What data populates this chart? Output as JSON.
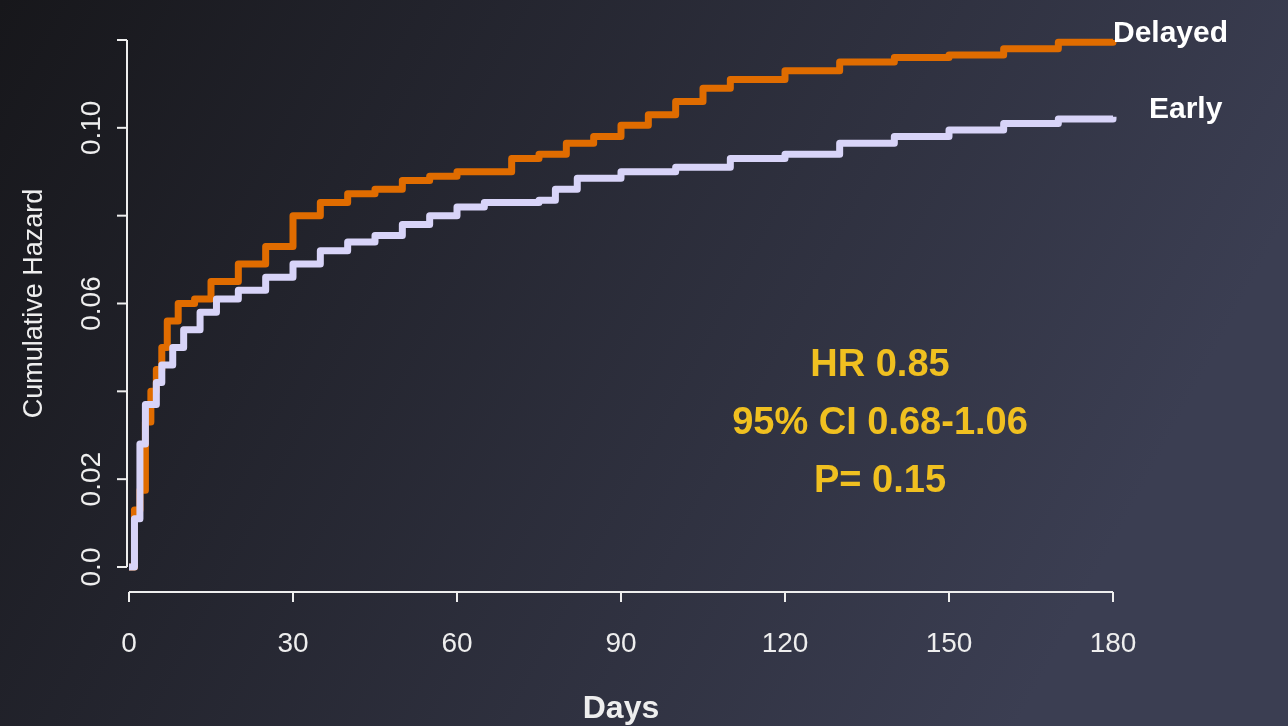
{
  "chart_data": {
    "type": "step",
    "xlabel": "Days",
    "ylabel": "Cumulative Hazard",
    "xlim": [
      0,
      180
    ],
    "xticks": [
      0,
      30,
      60,
      90,
      120,
      150,
      180
    ],
    "ylim": [
      0,
      0.12
    ],
    "yticks": [
      {
        "value": 0,
        "label": "0.0"
      },
      0.02,
      {
        "value": 0.04,
        "label": null
      },
      0.06,
      {
        "value": 0.08,
        "label": null
      },
      {
        "value": 0.1,
        "label": "0.10"
      },
      {
        "value": 0.12,
        "label": null
      }
    ],
    "grid": false,
    "annotations": [
      "HR 0.85",
      "95% CI 0.68-1.06",
      "P= 0.15"
    ],
    "series": [
      {
        "name": "Delayed",
        "color": "#e06c00",
        "x": [
          0,
          1,
          2,
          3,
          4,
          5,
          6,
          7,
          9,
          12,
          15,
          20,
          25,
          30,
          35,
          40,
          45,
          50,
          55,
          60,
          70,
          75,
          80,
          85,
          90,
          95,
          100,
          105,
          110,
          120,
          130,
          140,
          150,
          160,
          170,
          180
        ],
        "values": [
          0,
          0.013,
          0.0175,
          0.033,
          0.04,
          0.045,
          0.05,
          0.056,
          0.06,
          0.061,
          0.065,
          0.069,
          0.073,
          0.08,
          0.083,
          0.085,
          0.086,
          0.088,
          0.089,
          0.09,
          0.093,
          0.094,
          0.0965,
          0.098,
          0.1006,
          0.103,
          0.106,
          0.109,
          0.111,
          0.113,
          0.115,
          0.116,
          0.1166,
          0.118,
          0.1195,
          0.12
        ]
      },
      {
        "name": "Early",
        "color": "#d8d4f8",
        "x": [
          0,
          1,
          2,
          3,
          5,
          6,
          8,
          10,
          13,
          16,
          20,
          25,
          30,
          35,
          40,
          45,
          50,
          55,
          60,
          65,
          75,
          78,
          82,
          90,
          100,
          110,
          120,
          130,
          140,
          150,
          160,
          170,
          180
        ],
        "values": [
          0,
          0.011,
          0.028,
          0.037,
          0.042,
          0.046,
          0.05,
          0.054,
          0.058,
          0.061,
          0.063,
          0.066,
          0.069,
          0.072,
          0.074,
          0.0755,
          0.078,
          0.08,
          0.082,
          0.083,
          0.0835,
          0.086,
          0.0885,
          0.09,
          0.091,
          0.093,
          0.094,
          0.0965,
          0.098,
          0.0995,
          0.101,
          0.102,
          0.1025
        ]
      }
    ]
  }
}
